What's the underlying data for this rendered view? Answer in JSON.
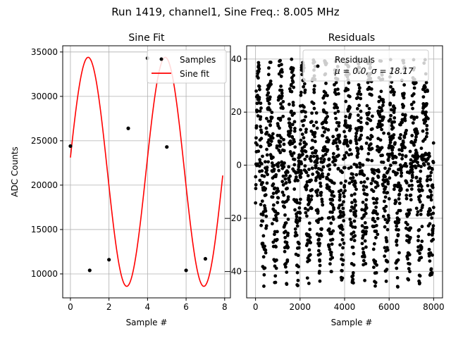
{
  "suptitle": "Run 1419, channel1, Sine Freq.: 8.005 MHz",
  "chart_data": [
    {
      "type": "scatter",
      "title": "Sine Fit",
      "xlabel": "Sample #",
      "ylabel": "ADC Counts",
      "xlim": [
        -0.4,
        8.3
      ],
      "ylim": [
        7300,
        35700
      ],
      "xticks": [
        0,
        2,
        4,
        6,
        8
      ],
      "yticks": [
        10000,
        15000,
        20000,
        25000,
        30000,
        35000
      ],
      "grid": true,
      "legend": {
        "location": "upper right",
        "entries": [
          "Samples",
          "Sine fit"
        ]
      },
      "series": [
        {
          "name": "Samples",
          "style": "points",
          "color": "#000000",
          "x": [
            0,
            1,
            2,
            3,
            4,
            5,
            6,
            7
          ],
          "y": [
            24400,
            10400,
            11600,
            26400,
            34300,
            24300,
            10400,
            11700
          ]
        },
        {
          "name": "Sine fit",
          "style": "line",
          "color": "#ff0000",
          "function": "sine",
          "x_range": [
            0,
            7.9
          ],
          "offset": 21500,
          "amplitude": 12900,
          "period": 4,
          "phase": 0.125
        }
      ]
    },
    {
      "type": "scatter",
      "title": "Residuals",
      "xlabel": "Sample #",
      "ylabel": "",
      "xlim": [
        -400,
        8400
      ],
      "ylim": [
        -50,
        45
      ],
      "xticks": [
        0,
        2000,
        4000,
        6000,
        8000
      ],
      "yticks": [
        -40,
        -20,
        0,
        20,
        40
      ],
      "grid": true,
      "legend": {
        "location": "upper right",
        "entries": [
          "Residuals",
          "μ = 0.0, σ = 18.17"
        ]
      },
      "series": [
        {
          "name": "Residuals",
          "style": "points",
          "color": "#000000",
          "x_range": [
            0,
            8000
          ],
          "approx_count": 8000,
          "mean": 0.0,
          "sigma": 18.17,
          "range": [
            -46,
            40
          ],
          "stripe_period": 500
        }
      ]
    }
  ]
}
